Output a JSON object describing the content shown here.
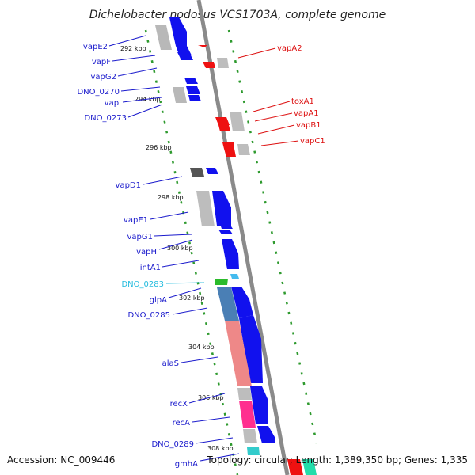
{
  "title": "Dichelobacter nodosus VCS1703A, complete genome",
  "footer": {
    "accession": "Accession: NC_009446",
    "summary": "Topology: circular; Length: 1,389,350 bp; Genes: 1,335"
  },
  "colors": {
    "left_label": "#1a1acc",
    "right_label": "#dd1111",
    "cyan_label": "#22bbdd",
    "backbone": "#8a8a8a",
    "dotted": "#2e9a2e"
  },
  "ticks": [
    "292 kbp",
    "294 kbp",
    "296 kbp",
    "298 kbp",
    "300 kbp",
    "302 kbp",
    "304 kbp",
    "306 kbp",
    "308 kbp"
  ],
  "left_genes": [
    "vapE2",
    "vapF",
    "vapG2",
    "DNO_0270",
    "vapI",
    "DNO_0273",
    "vapD1",
    "vapE1",
    "vapG1",
    "vapH",
    "intA1",
    "DNO_0283",
    "glpA",
    "DNO_0285",
    "alaS",
    "recX",
    "recA",
    "DNO_0289",
    "gmhA"
  ],
  "right_genes": [
    "vapA2",
    "toxA1",
    "vapA1",
    "vapB1",
    "vapC1"
  ]
}
